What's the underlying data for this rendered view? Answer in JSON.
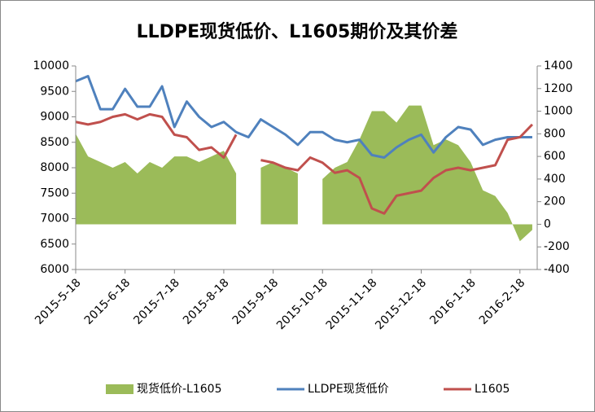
{
  "chart_data": {
    "type": "line",
    "title": "LLDPE现货低价、L1605期价及其价差",
    "categories": [
      "2015-5-18",
      null,
      null,
      null,
      "2015-6-18",
      null,
      null,
      null,
      "2015-7-18",
      null,
      null,
      null,
      "2015-8-18",
      null,
      null,
      null,
      "2015-9-18",
      null,
      null,
      null,
      "2015-10-18",
      null,
      null,
      null,
      "2015-11-18",
      null,
      null,
      null,
      "2015-12-18",
      null,
      null,
      null,
      "2016-1-18",
      null,
      null,
      null,
      "2016-2-18",
      null
    ],
    "series": [
      {
        "name": "现货低价-L1605",
        "type": "area",
        "color": "#9bbb59",
        "axis": "y2",
        "values": [
          800,
          600,
          550,
          500,
          550,
          450,
          550,
          500,
          600,
          600,
          550,
          600,
          650,
          450,
          null,
          500,
          550,
          500,
          450,
          null,
          400,
          500,
          550,
          750,
          1000,
          1000,
          900,
          1050,
          1050,
          700,
          750,
          700,
          550,
          300,
          250,
          100,
          -150,
          -50
        ]
      },
      {
        "name": "LLDPE现货低价",
        "type": "line",
        "color": "#4f81bd",
        "values": [
          9700,
          9800,
          9150,
          9150,
          9550,
          9200,
          9200,
          9600,
          8800,
          9300,
          9000,
          8800,
          8900,
          8700,
          8600,
          8950,
          8800,
          8650,
          8450,
          8700,
          8700,
          8550,
          8500,
          8550,
          8250,
          8200,
          8400,
          8550,
          8650,
          8300,
          8600,
          8800,
          8750,
          8450,
          8550,
          8600,
          8600,
          8600
        ]
      },
      {
        "name": "L1605",
        "type": "line",
        "color": "#c0504d",
        "values": [
          8900,
          8850,
          8900,
          9000,
          9050,
          8950,
          9050,
          9000,
          8650,
          8600,
          8350,
          8400,
          8200,
          8650,
          null,
          8150,
          8100,
          8000,
          7950,
          8200,
          8100,
          7900,
          7950,
          7800,
          7200,
          7100,
          7450,
          7500,
          7550,
          7800,
          7950,
          8000,
          7950,
          8000,
          8050,
          8550,
          8600,
          8850
        ]
      }
    ],
    "ylim": [
      6000,
      10000
    ],
    "yticks": [
      6000,
      6500,
      7000,
      7500,
      8000,
      8500,
      9000,
      9500,
      10000
    ],
    "y2lim": [
      -400,
      1400
    ],
    "y2ticks": [
      -400,
      -200,
      0,
      200,
      400,
      600,
      800,
      1000,
      1200,
      1400
    ],
    "legend": "bottom"
  }
}
